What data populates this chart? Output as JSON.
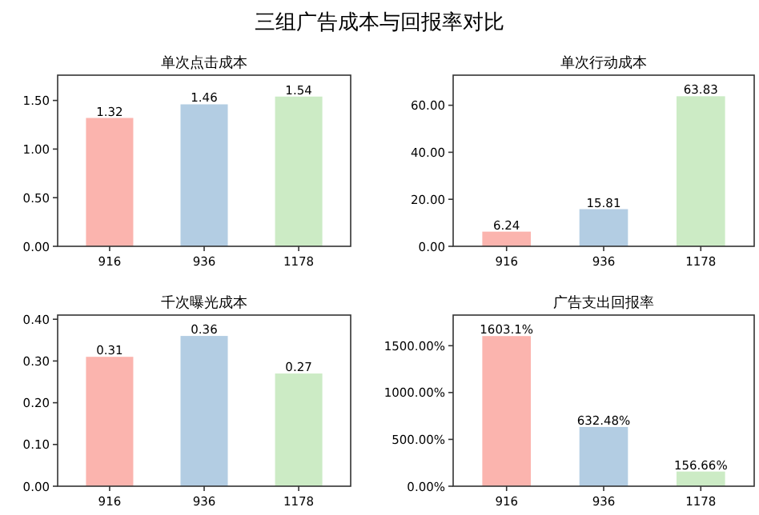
{
  "chart_data": [
    {
      "type": "bar",
      "title": "单次点击成本",
      "annotations": [
        "三组广告成本与回报率对比"
      ],
      "categories": [
        "916",
        "936",
        "1178"
      ],
      "values": [
        1.32,
        1.46,
        1.54
      ],
      "colors": [
        "#fbb4ae",
        "#b3cde3",
        "#ccebc5"
      ],
      "data_labels": true,
      "ylim": [
        0,
        1.76
      ],
      "yticks": [
        {
          "value": 0,
          "label": "0.00"
        },
        {
          "value": 0.5,
          "label": "0.50"
        },
        {
          "value": 1,
          "label": "1.00"
        },
        {
          "value": 1.5,
          "label": "1.50"
        }
      ]
    },
    {
      "type": "bar",
      "title": "单次行动成本",
      "categories": [
        "916",
        "936",
        "1178"
      ],
      "values": [
        6.24,
        15.81,
        63.83
      ],
      "colors": [
        "#fbb4ae",
        "#b3cde3",
        "#ccebc5"
      ],
      "data_labels": true,
      "ylim": [
        0,
        72.8
      ],
      "yticks": [
        {
          "value": 0,
          "label": "0.00"
        },
        {
          "value": 20,
          "label": "20.00"
        },
        {
          "value": 40,
          "label": "40.00"
        },
        {
          "value": 60,
          "label": "60.00"
        }
      ]
    },
    {
      "type": "bar",
      "title": "千次曝光成本",
      "categories": [
        "916",
        "936",
        "1178"
      ],
      "values": [
        0.31,
        0.36,
        0.27
      ],
      "colors": [
        "#fbb4ae",
        "#b3cde3",
        "#ccebc5"
      ],
      "data_labels": true,
      "ylim": [
        0,
        0.41
      ],
      "yticks": [
        {
          "value": 0,
          "label": "0.00"
        },
        {
          "value": 0.1,
          "label": "0.10"
        },
        {
          "value": 0.2,
          "label": "0.20"
        },
        {
          "value": 0.3,
          "label": "0.30"
        },
        {
          "value": 0.4,
          "label": "0.40"
        }
      ]
    },
    {
      "type": "bar",
      "title": "广告支出回报率",
      "categories": [
        "916",
        "936",
        "1178"
      ],
      "values": [
        1603.1,
        632.48,
        156.66
      ],
      "value_labels": [
        "1603.1%",
        "632.48%",
        "156.66%"
      ],
      "colors": [
        "#fbb4ae",
        "#b3cde3",
        "#ccebc5"
      ],
      "ylim": [
        0,
        1827
      ],
      "yticks": [
        {
          "value": 0,
          "label": "0.00%"
        },
        {
          "value": 500,
          "label": "500.00%"
        },
        {
          "value": 1000,
          "label": "1000.00%"
        },
        {
          "value": 1500,
          "label": "1500.00%"
        }
      ]
    }
  ]
}
